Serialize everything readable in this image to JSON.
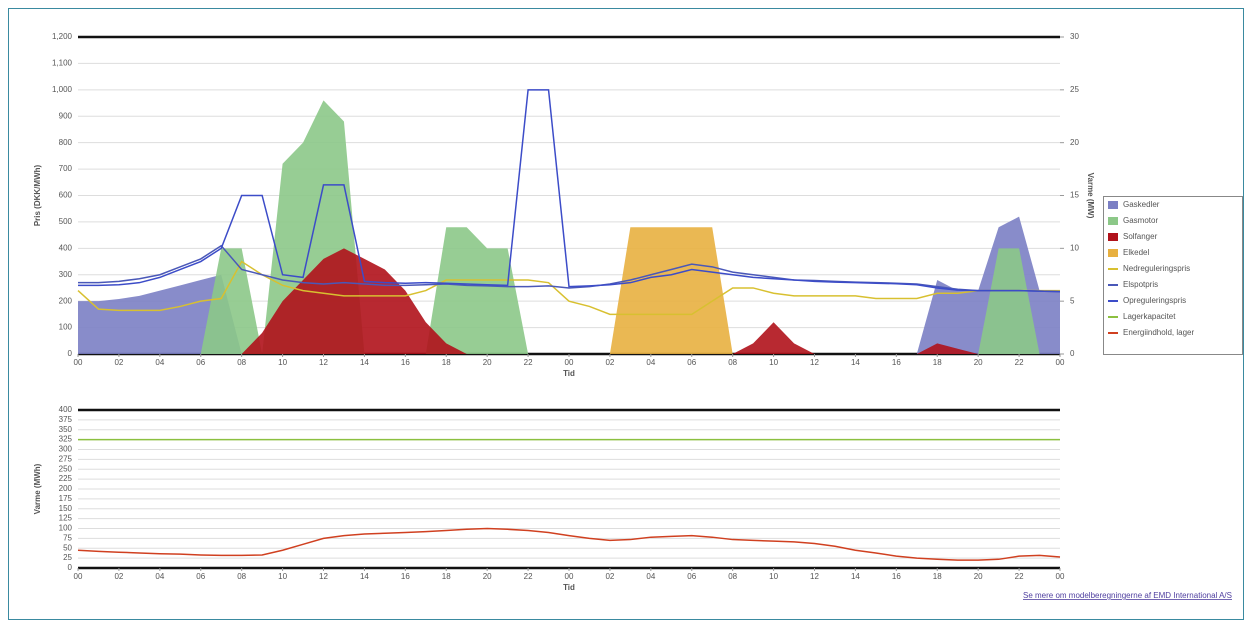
{
  "link": "Se mere om modelberegningerne af EMD International A/S",
  "chart_data": [
    {
      "type": "line",
      "xlabel": "Tid",
      "ylabel": "Pris (DKK/MWh)",
      "y2label": "Varme (MW)",
      "xlim": [
        0,
        48
      ],
      "xticks": [
        {
          "value": 0,
          "label": "00"
        },
        {
          "value": 2,
          "label": "02"
        },
        {
          "value": 4,
          "label": "04"
        },
        {
          "value": 6,
          "label": "06"
        },
        {
          "value": 8,
          "label": "08"
        },
        {
          "value": 10,
          "label": "10"
        },
        {
          "value": 12,
          "label": "12"
        },
        {
          "value": 14,
          "label": "14"
        },
        {
          "value": 16,
          "label": "16"
        },
        {
          "value": 18,
          "label": "18"
        },
        {
          "value": 20,
          "label": "20"
        },
        {
          "value": 22,
          "label": "22"
        },
        {
          "value": 24,
          "label": "00"
        },
        {
          "value": 26,
          "label": "02"
        },
        {
          "value": 28,
          "label": "04"
        },
        {
          "value": 30,
          "label": "06"
        },
        {
          "value": 32,
          "label": "08"
        },
        {
          "value": 34,
          "label": "10"
        },
        {
          "value": 36,
          "label": "12"
        },
        {
          "value": 38,
          "label": "14"
        },
        {
          "value": 40,
          "label": "16"
        },
        {
          "value": 42,
          "label": "18"
        },
        {
          "value": 44,
          "label": "20"
        },
        {
          "value": 46,
          "label": "22"
        },
        {
          "value": 48,
          "label": "00"
        }
      ],
      "ylim": [
        0,
        1200
      ],
      "yticks": [
        0,
        100,
        200,
        300,
        400,
        500,
        600,
        700,
        800,
        900,
        {
          "value": 1000,
          "label": "1,000"
        },
        {
          "value": 1100,
          "label": "1,100"
        },
        {
          "value": 1200,
          "label": "1,200"
        }
      ],
      "y2lim": [
        0,
        30
      ],
      "y2ticks": [
        0,
        5,
        10,
        15,
        20,
        25,
        30
      ],
      "x": [
        0,
        1,
        2,
        3,
        4,
        5,
        6,
        7,
        8,
        9,
        10,
        11,
        12,
        13,
        14,
        15,
        16,
        17,
        18,
        19,
        20,
        21,
        22,
        23,
        24,
        25,
        26,
        27,
        28,
        29,
        30,
        31,
        32,
        33,
        34,
        35,
        36,
        37,
        38,
        39,
        40,
        41,
        42,
        43,
        44,
        45,
        46,
        47,
        48
      ],
      "series": [
        {
          "name": "Gaskedler",
          "type": "area",
          "axis": "y2",
          "color": "#7b7fc4",
          "values": [
            5,
            5,
            5.2,
            5.5,
            6,
            6.5,
            7,
            7.5,
            0,
            0,
            0,
            0,
            0,
            0,
            0,
            0,
            0,
            0,
            0,
            0,
            0,
            0,
            0,
            0,
            0,
            0,
            0,
            0,
            0,
            0,
            0,
            0,
            0,
            0,
            0,
            0,
            0,
            0,
            0,
            0,
            0,
            0,
            7,
            6,
            6,
            12,
            13,
            6,
            6
          ]
        },
        {
          "name": "Gasmotor",
          "type": "area",
          "axis": "y2",
          "color": "#8cc888",
          "values": [
            0,
            0,
            0,
            0,
            0,
            0,
            0,
            10,
            10,
            0,
            18,
            20,
            24,
            22,
            0,
            0,
            0,
            0,
            12,
            12,
            10,
            10,
            0,
            0,
            0,
            0,
            0,
            0,
            0,
            0,
            0,
            0,
            0,
            0,
            0,
            0,
            0,
            0,
            0,
            0,
            0,
            0,
            0,
            0,
            0,
            10,
            10,
            0,
            0
          ]
        },
        {
          "name": "Solfanger",
          "type": "area",
          "axis": "y2",
          "color": "#b0121b",
          "values": [
            0,
            0,
            0,
            0,
            0,
            0,
            0,
            0,
            0,
            2,
            5,
            7,
            9,
            10,
            9,
            8,
            6,
            3,
            1,
            0,
            0,
            0,
            0,
            0,
            0,
            0,
            0,
            0,
            0,
            0,
            0,
            0,
            0,
            1,
            3,
            1,
            0,
            0,
            0,
            0,
            0,
            0,
            1,
            0.5,
            0,
            0,
            0,
            0,
            0
          ]
        },
        {
          "name": "Elkedel",
          "type": "area",
          "axis": "y2",
          "color": "#e8b040",
          "values": [
            0,
            0,
            0,
            0,
            0,
            0,
            0,
            0,
            0,
            0,
            0,
            0,
            0,
            0,
            0,
            0,
            0,
            0,
            0,
            0,
            0,
            0,
            0,
            0,
            0,
            0,
            0,
            12,
            12,
            12,
            12,
            12,
            0,
            0,
            0,
            0,
            0,
            0,
            0,
            0,
            0,
            0,
            0,
            0,
            0,
            0,
            0,
            0,
            0
          ]
        },
        {
          "name": "Nedreguleringspris",
          "type": "line",
          "color": "#d8c030",
          "values": [
            240,
            170,
            165,
            165,
            165,
            180,
            200,
            210,
            350,
            300,
            260,
            240,
            230,
            220,
            220,
            220,
            220,
            240,
            280,
            280,
            280,
            280,
            280,
            270,
            200,
            180,
            150,
            150,
            150,
            150,
            150,
            200,
            250,
            250,
            230,
            220,
            220,
            220,
            220,
            210,
            210,
            210,
            230,
            230,
            240,
            240,
            240,
            240,
            240
          ]
        },
        {
          "name": "Elspotpris",
          "type": "line",
          "color": "#4a58b8",
          "values": [
            270,
            270,
            275,
            285,
            300,
            330,
            360,
            410,
            320,
            300,
            280,
            270,
            265,
            270,
            265,
            260,
            260,
            262,
            265,
            260,
            258,
            255,
            255,
            258,
            250,
            255,
            265,
            280,
            300,
            320,
            340,
            330,
            310,
            300,
            290,
            280,
            278,
            275,
            272,
            270,
            268,
            265,
            255,
            245,
            240,
            240,
            240,
            238,
            236
          ]
        },
        {
          "name": "Opreguleringspris",
          "type": "line",
          "color": "#3c4cc8",
          "values": [
            260,
            260,
            262,
            270,
            290,
            320,
            350,
            400,
            600,
            600,
            300,
            290,
            640,
            640,
            275,
            270,
            268,
            270,
            268,
            265,
            262,
            260,
            1000,
            1000,
            255,
            258,
            262,
            270,
            290,
            300,
            320,
            310,
            300,
            290,
            285,
            280,
            275,
            272,
            270,
            268,
            266,
            262,
            250,
            242,
            240,
            240,
            240,
            238,
            236
          ]
        }
      ]
    },
    {
      "type": "line",
      "xlabel": "Tid",
      "ylabel": "Varme (MWh)",
      "xlim": [
        0,
        48
      ],
      "xticks": [
        {
          "value": 0,
          "label": "00"
        },
        {
          "value": 2,
          "label": "02"
        },
        {
          "value": 4,
          "label": "04"
        },
        {
          "value": 6,
          "label": "06"
        },
        {
          "value": 8,
          "label": "08"
        },
        {
          "value": 10,
          "label": "10"
        },
        {
          "value": 12,
          "label": "12"
        },
        {
          "value": 14,
          "label": "14"
        },
        {
          "value": 16,
          "label": "16"
        },
        {
          "value": 18,
          "label": "18"
        },
        {
          "value": 20,
          "label": "20"
        },
        {
          "value": 22,
          "label": "22"
        },
        {
          "value": 24,
          "label": "00"
        },
        {
          "value": 26,
          "label": "02"
        },
        {
          "value": 28,
          "label": "04"
        },
        {
          "value": 30,
          "label": "06"
        },
        {
          "value": 32,
          "label": "08"
        },
        {
          "value": 34,
          "label": "10"
        },
        {
          "value": 36,
          "label": "12"
        },
        {
          "value": 38,
          "label": "14"
        },
        {
          "value": 40,
          "label": "16"
        },
        {
          "value": 42,
          "label": "18"
        },
        {
          "value": 44,
          "label": "20"
        },
        {
          "value": 46,
          "label": "22"
        },
        {
          "value": 48,
          "label": "00"
        }
      ],
      "ylim": [
        0,
        400
      ],
      "yticks": [
        0,
        25,
        50,
        75,
        100,
        125,
        150,
        175,
        200,
        225,
        250,
        275,
        300,
        325,
        350,
        375,
        400
      ],
      "x": [
        0,
        1,
        2,
        3,
        4,
        5,
        6,
        7,
        8,
        9,
        10,
        11,
        12,
        13,
        14,
        15,
        16,
        17,
        18,
        19,
        20,
        21,
        22,
        23,
        24,
        25,
        26,
        27,
        28,
        29,
        30,
        31,
        32,
        33,
        34,
        35,
        36,
        37,
        38,
        39,
        40,
        41,
        42,
        43,
        44,
        45,
        46,
        47,
        48
      ],
      "series": [
        {
          "name": "Lagerkapacitet",
          "type": "line",
          "color": "#8cc040",
          "values": [
            325,
            325,
            325,
            325,
            325,
            325,
            325,
            325,
            325,
            325,
            325,
            325,
            325,
            325,
            325,
            325,
            325,
            325,
            325,
            325,
            325,
            325,
            325,
            325,
            325,
            325,
            325,
            325,
            325,
            325,
            325,
            325,
            325,
            325,
            325,
            325,
            325,
            325,
            325,
            325,
            325,
            325,
            325,
            325,
            325,
            325,
            325,
            325,
            325
          ]
        },
        {
          "name": "Energiindhold, lager",
          "type": "line",
          "color": "#d04020",
          "values": [
            45,
            42,
            40,
            38,
            36,
            35,
            33,
            32,
            32,
            33,
            45,
            60,
            75,
            82,
            86,
            88,
            90,
            92,
            95,
            98,
            100,
            98,
            95,
            90,
            82,
            75,
            70,
            72,
            78,
            80,
            82,
            78,
            72,
            70,
            68,
            66,
            62,
            55,
            45,
            38,
            30,
            25,
            22,
            20,
            20,
            22,
            30,
            32,
            28
          ]
        }
      ]
    }
  ]
}
